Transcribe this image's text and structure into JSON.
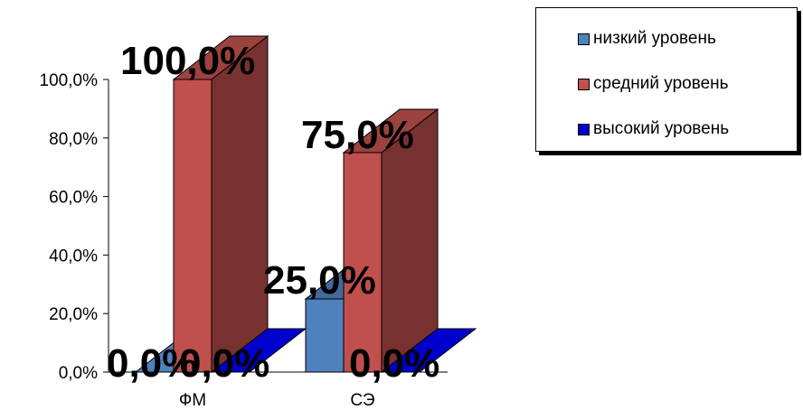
{
  "chart_data": {
    "type": "bar",
    "categories": [
      "ФМ",
      "СЭ"
    ],
    "series": [
      {
        "name": "низкий уровень",
        "values": [
          0,
          25
        ],
        "labels": [
          "0,0%",
          "25,0%"
        ],
        "color": "#4f81bd"
      },
      {
        "name": "средний уровень",
        "values": [
          100,
          75
        ],
        "labels": [
          "100,0%",
          "75,0%"
        ],
        "color": "#c0504d"
      },
      {
        "name": "высокий уровень",
        "values": [
          0,
          0
        ],
        "labels": [
          "0,0%",
          "0,0%"
        ],
        "color": "#0000cc"
      }
    ],
    "ylim": [
      0,
      100
    ],
    "yticks": [
      "0,0%",
      "20,0%",
      "40,0%",
      "60,0%",
      "80,0%",
      "100,0%"
    ],
    "legend_position": "top-right",
    "three_d": true
  }
}
